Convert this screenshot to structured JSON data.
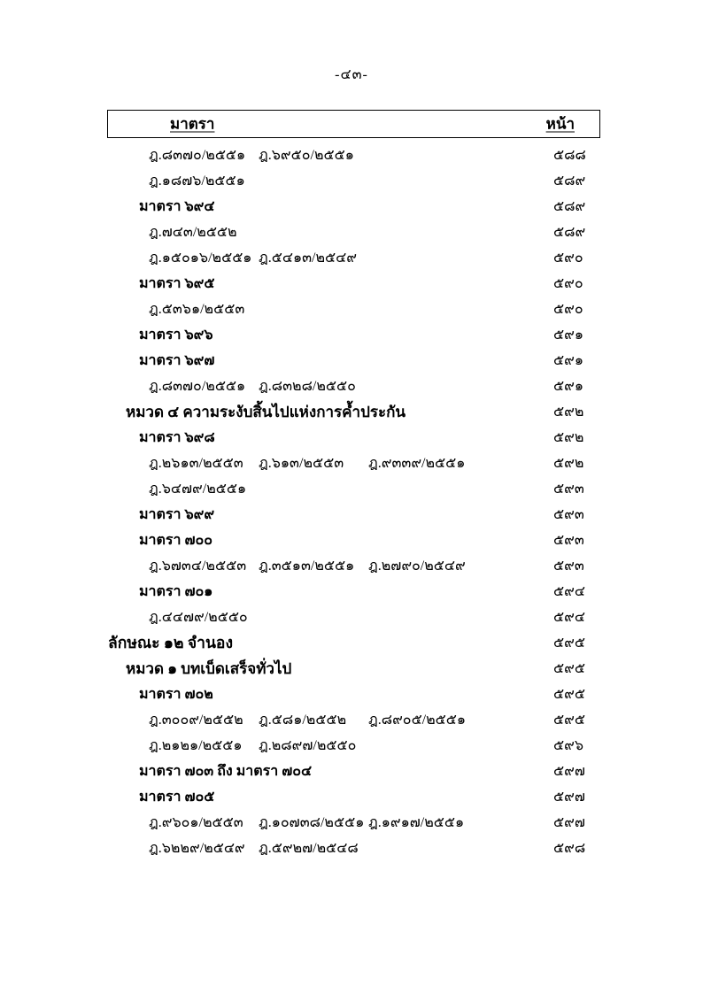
{
  "page": {
    "top_page_number": "-๔๓-"
  },
  "colors": {
    "text": "#000000",
    "background": "#ffffff",
    "border": "#000000"
  },
  "table": {
    "header_section": "มาตรา",
    "header_page": "หน้า",
    "rows": [
      {
        "type": "citations",
        "citations": [
          "ฎ.๘๓๗๐/๒๕๕๑",
          "ฎ.๖๙๕๐/๒๕๕๑"
        ],
        "page": "๕๘๘"
      },
      {
        "type": "citations",
        "citations": [
          "ฎ.๑๘๗๖/๒๕๕๑"
        ],
        "page": "๕๘๙"
      },
      {
        "type": "section",
        "text": "มาตรา ๖๙๔",
        "page": "๕๘๙"
      },
      {
        "type": "citations",
        "citations": [
          "ฎ.๗๔๓/๒๕๕๒"
        ],
        "page": "๕๘๙"
      },
      {
        "type": "citations",
        "citations": [
          "ฎ.๑๕๐๑๖/๒๕๕๑",
          "ฎ.๕๔๑๓/๒๕๔๙"
        ],
        "page": "๕๙๐"
      },
      {
        "type": "section",
        "text": "มาตรา ๖๙๕",
        "page": "๕๙๐"
      },
      {
        "type": "citations",
        "citations": [
          "ฎ.๕๓๖๑/๒๕๕๓"
        ],
        "page": "๕๙๐"
      },
      {
        "type": "section",
        "text": "มาตรา ๖๙๖",
        "page": "๕๙๑"
      },
      {
        "type": "section",
        "text": "มาตรา ๖๙๗",
        "page": "๕๙๑"
      },
      {
        "type": "citations",
        "citations": [
          "ฎ.๘๓๗๐/๒๕๕๑",
          "ฎ.๘๓๒๘/๒๕๕๐"
        ],
        "page": "๕๙๑"
      },
      {
        "type": "chapter",
        "text": "หมวด ๔ ความระงับสิ้นไปแห่งการค้ำประกัน",
        "page": "๕๙๒"
      },
      {
        "type": "section",
        "text": "มาตรา ๖๙๘",
        "page": "๕๙๒"
      },
      {
        "type": "citations",
        "citations": [
          "ฎ.๒๖๑๓/๒๕๕๓",
          "ฎ.๖๑๓/๒๕๕๓",
          "ฎ.๙๓๓๙/๒๕๕๑"
        ],
        "page": "๕๙๒"
      },
      {
        "type": "citations",
        "citations": [
          "ฎ.๖๔๗๙/๒๕๕๑"
        ],
        "page": "๕๙๓"
      },
      {
        "type": "section",
        "text": "มาตรา ๖๙๙",
        "page": "๕๙๓"
      },
      {
        "type": "section",
        "text": "มาตรา ๗๐๐",
        "page": "๕๙๓"
      },
      {
        "type": "citations",
        "citations": [
          "ฎ.๖๗๓๔/๒๕๕๓",
          "ฎ.๓๕๑๓/๒๕๕๑",
          "ฎ.๒๗๙๐/๒๕๔๙"
        ],
        "page": "๕๙๓"
      },
      {
        "type": "section",
        "text": "มาตรา ๗๐๑",
        "page": "๕๙๔"
      },
      {
        "type": "citations",
        "citations": [
          "ฎ.๔๔๗๙/๒๕๕๐"
        ],
        "page": "๕๙๔"
      },
      {
        "type": "title",
        "text": "ลักษณะ ๑๒ จำนอง",
        "page": "๕๙๕"
      },
      {
        "type": "chapter",
        "text": "หมวด ๑ บทเบ็ดเสร็จทั่วไป",
        "page": "๕๙๕"
      },
      {
        "type": "section",
        "text": "มาตรา ๗๐๒",
        "page": "๕๙๕"
      },
      {
        "type": "citations",
        "citations": [
          "ฎ.๓๐๐๙/๒๕๕๒",
          "ฎ.๕๘๑/๒๕๕๒",
          "ฎ.๘๙๐๕/๒๕๕๑"
        ],
        "page": "๕๙๕"
      },
      {
        "type": "citations",
        "citations": [
          "ฎ.๒๑๒๑/๒๕๕๑",
          "ฎ.๒๘๙๗/๒๕๕๐"
        ],
        "page": "๕๙๖"
      },
      {
        "type": "section",
        "text": "มาตรา ๗๐๓  ถึง มาตรา ๗๐๔",
        "page": "๕๙๗"
      },
      {
        "type": "section",
        "text": "มาตรา ๗๐๕",
        "page": "๕๙๗"
      },
      {
        "type": "citations",
        "citations": [
          "ฎ.๙๖๐๑/๒๕๕๓",
          "ฎ.๑๐๗๓๘/๒๕๕๑",
          "ฎ.๑๙๑๗/๒๕๕๑"
        ],
        "page": "๕๙๗"
      },
      {
        "type": "citations",
        "citations": [
          "ฎ.๖๒๒๙/๒๕๔๙",
          "ฎ.๕๙๒๗/๒๕๔๘"
        ],
        "page": "๕๙๘"
      }
    ]
  }
}
